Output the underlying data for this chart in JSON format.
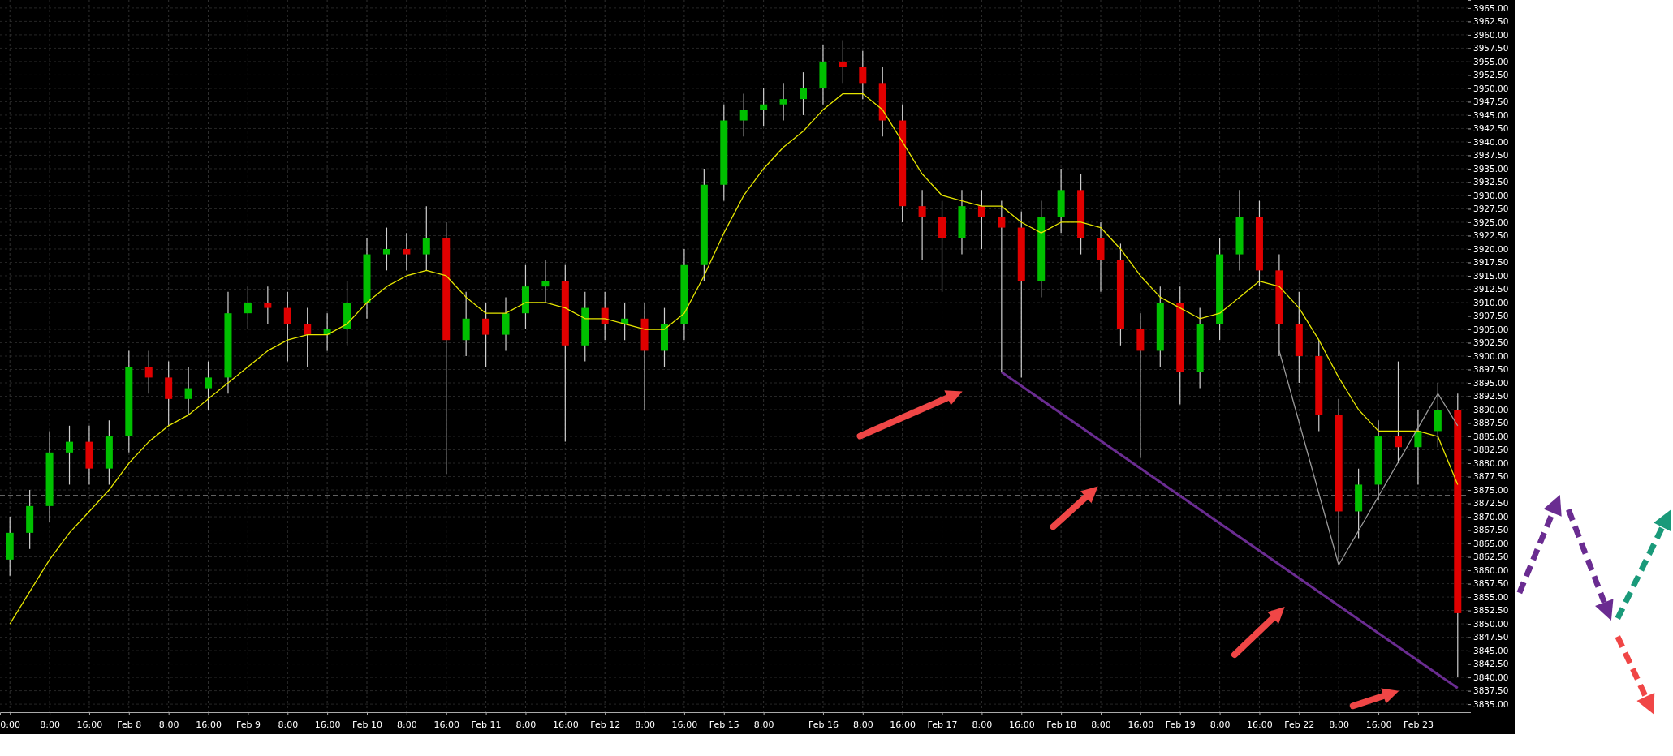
{
  "chart_data": {
    "type": "candlestick",
    "ylim": [
      3833.5,
      3966.5
    ],
    "yticks": [
      {
        "value": 3835,
        "label": "3835.00"
      },
      {
        "value": 3837.5,
        "label": "3837.50"
      },
      {
        "value": 3840,
        "label": "3840.00"
      },
      {
        "value": 3842.5,
        "label": "3842.50"
      },
      {
        "value": 3845,
        "label": "3845.00"
      },
      {
        "value": 3847.5,
        "label": "3847.50"
      },
      {
        "value": 3850,
        "label": "3850.00"
      },
      {
        "value": 3852.5,
        "label": "3852.50"
      },
      {
        "value": 3855,
        "label": "3855.00"
      },
      {
        "value": 3857.5,
        "label": "3857.50"
      },
      {
        "value": 3860,
        "label": "3860.00"
      },
      {
        "value": 3862.5,
        "label": "3862.50"
      },
      {
        "value": 3865,
        "label": "3865.00"
      },
      {
        "value": 3867.5,
        "label": "3867.50"
      },
      {
        "value": 3870,
        "label": "3870.00"
      },
      {
        "value": 3872.5,
        "label": "3872.50"
      },
      {
        "value": 3875,
        "label": "3875.00"
      },
      {
        "value": 3877.5,
        "label": "3877.50"
      },
      {
        "value": 3880,
        "label": "3880.00"
      },
      {
        "value": 3882.5,
        "label": "3882.50"
      },
      {
        "value": 3885,
        "label": "3885.00"
      },
      {
        "value": 3887.5,
        "label": "3887.50"
      },
      {
        "value": 3890,
        "label": "3890.00"
      },
      {
        "value": 3892.5,
        "label": "3892.50"
      },
      {
        "value": 3895,
        "label": "3895.00"
      },
      {
        "value": 3897.5,
        "label": "3897.50"
      },
      {
        "value": 3900,
        "label": "3900.00"
      },
      {
        "value": 3902.5,
        "label": "3902.50"
      },
      {
        "value": 3905,
        "label": "3905.00"
      },
      {
        "value": 3907.5,
        "label": "3907.50"
      },
      {
        "value": 3910,
        "label": "3910.00"
      },
      {
        "value": 3912.5,
        "label": "3912.50"
      },
      {
        "value": 3915,
        "label": "3915.00"
      },
      {
        "value": 3917.5,
        "label": "3917.50"
      },
      {
        "value": 3920,
        "label": "3920.00"
      },
      {
        "value": 3922.5,
        "label": "3922.50"
      },
      {
        "value": 3925,
        "label": "3925.00"
      },
      {
        "value": 3927.5,
        "label": "3927.50"
      },
      {
        "value": 3930,
        "label": "3930.00"
      },
      {
        "value": 3932.5,
        "label": "3932.50"
      },
      {
        "value": 3935,
        "label": "3935.00"
      },
      {
        "value": 3937.5,
        "label": "3937.50"
      },
      {
        "value": 3940,
        "label": "3940.00"
      },
      {
        "value": 3942.5,
        "label": "3942.50"
      },
      {
        "value": 3945,
        "label": "3945.00"
      },
      {
        "value": 3947.5,
        "label": "3947.50"
      },
      {
        "value": 3950,
        "label": "3950.00"
      },
      {
        "value": 3952.5,
        "label": "3952.50"
      },
      {
        "value": 3955,
        "label": "3955.00"
      },
      {
        "value": 3957.5,
        "label": "3957.50"
      },
      {
        "value": 3960,
        "label": "3960.00"
      },
      {
        "value": 3962.5,
        "label": "3962.50"
      },
      {
        "value": 3965,
        "label": "3965.00"
      }
    ],
    "grid": true,
    "categories": [
      "0:00",
      null,
      "8:00",
      null,
      "16:00",
      null,
      "Feb 8",
      null,
      "8:00",
      null,
      "16:00",
      null,
      "Feb 9",
      null,
      "8:00",
      null,
      "16:00",
      null,
      "Feb 10",
      null,
      "8:00",
      null,
      "16:00",
      null,
      "Feb 11",
      null,
      "8:00",
      null,
      "16:00",
      null,
      "Feb 12",
      null,
      "8:00",
      null,
      "16:00",
      null,
      "Feb 15",
      null,
      "8:00",
      null,
      null,
      "Feb 16",
      null,
      "8:00",
      null,
      "16:00",
      null,
      "Feb 17",
      null,
      "8:00",
      null,
      "16:00",
      null,
      "Feb 18",
      null,
      "8:00",
      null,
      "16:00",
      null,
      "Feb 19",
      null,
      "8:00",
      null,
      "16:00",
      null,
      "Feb 22",
      null,
      "8:00",
      null,
      "16:00",
      null,
      "Feb 23",
      null,
      null
    ],
    "ohlc": [
      [
        3862,
        3870,
        3859,
        3867
      ],
      [
        3867,
        3875,
        3864,
        3872
      ],
      [
        3872,
        3886,
        3869,
        3882
      ],
      [
        3882,
        3887,
        3876,
        3884
      ],
      [
        3884,
        3887,
        3876,
        3879
      ],
      [
        3879,
        3888,
        3876,
        3885
      ],
      [
        3885,
        3901,
        3882,
        3898
      ],
      [
        3898,
        3901,
        3893,
        3896
      ],
      [
        3896,
        3899,
        3887,
        3892
      ],
      [
        3892,
        3898,
        3889,
        3894
      ],
      [
        3894,
        3899,
        3890,
        3896
      ],
      [
        3896,
        3912,
        3893,
        3908
      ],
      [
        3908,
        3913,
        3905,
        3910
      ],
      [
        3910,
        3913,
        3906,
        3909
      ],
      [
        3909,
        3912,
        3899,
        3906
      ],
      [
        3906,
        3909,
        3898,
        3904
      ],
      [
        3904,
        3908,
        3901,
        3905
      ],
      [
        3905,
        3914,
        3902,
        3910
      ],
      [
        3910,
        3922,
        3907,
        3919
      ],
      [
        3919,
        3924,
        3916,
        3920
      ],
      [
        3920,
        3923,
        3916,
        3919
      ],
      [
        3919,
        3928,
        3916,
        3922
      ],
      [
        3922,
        3925,
        3878,
        3903
      ],
      [
        3903,
        3912,
        3900,
        3907
      ],
      [
        3907,
        3910,
        3898,
        3904
      ],
      [
        3904,
        3911,
        3901,
        3908
      ],
      [
        3908,
        3917,
        3905,
        3913
      ],
      [
        3913,
        3918,
        3910,
        3914
      ],
      [
        3914,
        3917,
        3884,
        3902
      ],
      [
        3902,
        3912,
        3899,
        3909
      ],
      [
        3909,
        3912,
        3903,
        3906
      ],
      [
        3906,
        3910,
        3903,
        3907
      ],
      [
        3907,
        3910,
        3890,
        3901
      ],
      [
        3901,
        3909,
        3898,
        3906
      ],
      [
        3906,
        3920,
        3903,
        3917
      ],
      [
        3917,
        3935,
        3914,
        3932
      ],
      [
        3932,
        3947,
        3929,
        3944
      ],
      [
        3944,
        3949,
        3941,
        3946
      ],
      [
        3946,
        3950,
        3943,
        3947
      ],
      [
        3947,
        3951,
        3944,
        3948
      ],
      [
        3948,
        3953,
        3945,
        3950
      ],
      [
        3950,
        3958,
        3947,
        3955
      ],
      [
        3955,
        3959,
        3951,
        3954
      ],
      [
        3954,
        3957,
        3948,
        3951
      ],
      [
        3951,
        3954,
        3941,
        3944
      ],
      [
        3944,
        3947,
        3925,
        3928
      ],
      [
        3928,
        3931,
        3918,
        3926
      ],
      [
        3926,
        3929,
        3912,
        3922
      ],
      [
        3922,
        3931,
        3919,
        3928
      ],
      [
        3928,
        3931,
        3920,
        3926
      ],
      [
        3926,
        3929,
        3897,
        3924
      ],
      [
        3924,
        3927,
        3896,
        3914
      ],
      [
        3914,
        3929,
        3911,
        3926
      ],
      [
        3926,
        3935,
        3923,
        3931
      ],
      [
        3931,
        3934,
        3919,
        3922
      ],
      [
        3922,
        3925,
        3912,
        3918
      ],
      [
        3918,
        3921,
        3902,
        3905
      ],
      [
        3905,
        3908,
        3881,
        3901
      ],
      [
        3901,
        3913,
        3898,
        3910
      ],
      [
        3910,
        3913,
        3891,
        3897
      ],
      [
        3897,
        3909,
        3894,
        3906
      ],
      [
        3906,
        3922,
        3903,
        3919
      ],
      [
        3919,
        3931,
        3916,
        3926
      ],
      [
        3926,
        3929,
        3913,
        3916
      ],
      [
        3916,
        3919,
        3900,
        3906
      ],
      [
        3906,
        3912,
        3895,
        3900
      ],
      [
        3900,
        3903,
        3886,
        3889
      ],
      [
        3889,
        3892,
        3862,
        3871
      ],
      [
        3871,
        3879,
        3866,
        3876
      ],
      [
        3876,
        3888,
        3873,
        3885
      ],
      [
        3885,
        3899,
        3880,
        3883
      ],
      [
        3883,
        3890,
        3876,
        3886
      ],
      [
        3886,
        3895,
        3883,
        3890
      ],
      [
        3890,
        3893,
        3840,
        3852
      ]
    ],
    "colors": [
      "#00c000",
      "#00c000",
      "#00c000",
      "#00c000",
      "#e00000",
      "#00c000",
      "#00c000",
      "#e00000",
      "#e00000",
      "#00c000",
      "#00c000",
      "#00c000",
      "#00c000",
      "#e00000",
      "#e00000",
      "#e00000",
      "#00c000",
      "#00c000",
      "#00c000",
      "#00c000",
      "#e00000",
      "#00c000",
      "#e00000",
      "#00c000",
      "#e00000",
      "#00c000",
      "#00c000",
      "#00c000",
      "#e00000",
      "#00c000",
      "#e00000",
      "#00c000",
      "#e00000",
      "#00c000",
      "#00c000",
      "#00c000",
      "#00c000",
      "#00c000",
      "#00c000",
      "#00c000",
      "#00c000",
      "#00c000",
      "#e00000",
      "#e00000",
      "#e00000",
      "#e00000",
      "#e00000",
      "#e00000",
      "#00c000",
      "#e00000",
      "#e00000",
      "#e00000",
      "#00c000",
      "#00c000",
      "#e00000",
      "#e00000",
      "#e00000",
      "#e00000",
      "#00c000",
      "#e00000",
      "#00c000",
      "#00c000",
      "#00c000",
      "#e00000",
      "#e00000",
      "#e00000",
      "#e00000",
      "#e00000",
      "#00c000",
      "#00c000",
      "#e00000",
      "#00c000",
      "#00c000",
      "#e00000"
    ],
    "series": [
      {
        "type": "line",
        "color": "#e6e600",
        "values": [
          3850,
          3856,
          3862,
          3867,
          3871,
          3875,
          3880,
          3884,
          3887,
          3889,
          3892,
          3895,
          3898,
          3901,
          3903,
          3904,
          3904,
          3906,
          3910,
          3913,
          3915,
          3916,
          3915,
          3911,
          3908,
          3908,
          3910,
          3910,
          3909,
          3907,
          3907,
          3906,
          3905,
          3905,
          3908,
          3915,
          3923,
          3930,
          3935,
          3939,
          3942,
          3946,
          3949,
          3949,
          3946,
          3940,
          3934,
          3930,
          3929,
          3928,
          3928,
          3925,
          3923,
          3925,
          3925,
          3924,
          3920,
          3915,
          3911,
          3909,
          3907,
          3908,
          3911,
          3914,
          3913,
          3909,
          3903,
          3896,
          3890,
          3886,
          3886,
          3886,
          3885,
          3876
        ]
      },
      {
        "type": "line",
        "color": "#6a2c91",
        "values": [
          null,
          null,
          null,
          null,
          null,
          null,
          null,
          null,
          null,
          null,
          null,
          null,
          null,
          null,
          null,
          null,
          null,
          null,
          null,
          null,
          null,
          null,
          null,
          null,
          null,
          null,
          null,
          null,
          null,
          null,
          null,
          null,
          null,
          null,
          null,
          null,
          null,
          null,
          null,
          null,
          null,
          null,
          null,
          null,
          null,
          null,
          null,
          null,
          null,
          null,
          3897,
          null,
          null,
          null,
          null,
          null,
          null,
          null,
          null,
          null,
          null,
          null,
          null,
          null,
          null,
          null,
          null,
          null,
          null,
          null,
          null,
          null,
          null,
          3838
        ]
      },
      {
        "type": "line",
        "color": "#9a9a9a",
        "values": [
          null,
          null,
          null,
          null,
          null,
          null,
          null,
          null,
          null,
          null,
          null,
          null,
          null,
          null,
          null,
          null,
          null,
          null,
          null,
          null,
          null,
          null,
          null,
          null,
          null,
          null,
          null,
          null,
          null,
          null,
          null,
          null,
          null,
          null,
          null,
          null,
          null,
          null,
          null,
          null,
          null,
          null,
          null,
          null,
          null,
          null,
          null,
          null,
          null,
          null,
          null,
          null,
          null,
          null,
          null,
          null,
          null,
          null,
          null,
          null,
          null,
          null,
          null,
          null,
          3901,
          null,
          null,
          3861,
          null,
          null,
          null,
          null,
          3893,
          3887
        ]
      }
    ],
    "ref_lines": [
      {
        "axis": "y",
        "value": 3874,
        "color": "#707070",
        "line_style": "dashed"
      }
    ]
  }
}
